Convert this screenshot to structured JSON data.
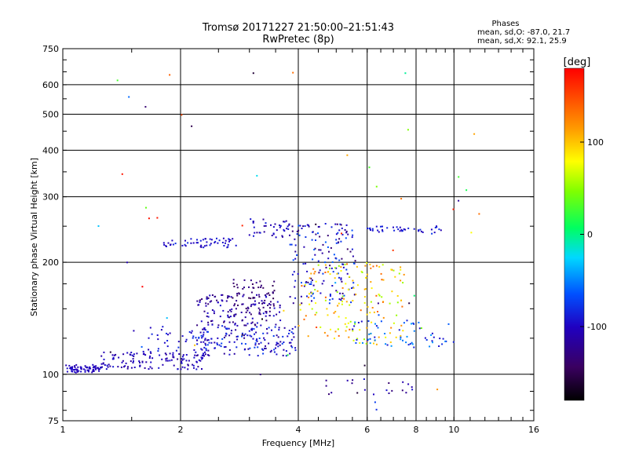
{
  "header": {
    "title_line1": "Tromsø 20171227 21:50:00–21:51:43",
    "title_line2": "RwPretec (8p)",
    "phases_title": "Phases",
    "phases_o": "mean, sd,O: -87.0, 21.7",
    "phases_x": "mean, sd,X:  92.1, 25.9"
  },
  "colorbar": {
    "label": "[deg]",
    "ticks": [
      {
        "value": 100,
        "label": "100"
      },
      {
        "value": 0,
        "label": "0"
      },
      {
        "value": -100,
        "label": "-100"
      }
    ],
    "range": [
      -180,
      180
    ]
  },
  "chart_data": {
    "type": "scatter",
    "xlabel": "Frequency [MHz]",
    "ylabel": "Stationary phase Virtual Height [km]",
    "x_scale": "log",
    "y_scale": "log",
    "xlim": [
      1,
      16
    ],
    "ylim": [
      75,
      750
    ],
    "grid": true,
    "x_ticks": [
      {
        "value": 1,
        "label": "1"
      },
      {
        "value": 2,
        "label": "2"
      },
      {
        "value": 4,
        "label": "4"
      },
      {
        "value": 6,
        "label": "6"
      },
      {
        "value": 8,
        "label": "8"
      },
      {
        "value": 10,
        "label": "10"
      },
      {
        "value": 16,
        "label": "16"
      }
    ],
    "y_ticks": [
      {
        "value": 75,
        "label": "75"
      },
      {
        "value": 100,
        "label": "100"
      },
      {
        "value": 200,
        "label": "200"
      },
      {
        "value": 300,
        "label": "300"
      },
      {
        "value": 400,
        "label": "400"
      },
      {
        "value": 500,
        "label": "500"
      },
      {
        "value": 600,
        "label": "600"
      },
      {
        "value": 750,
        "label": "750"
      }
    ],
    "x_gridlines": [
      2,
      4,
      6,
      8,
      10
    ],
    "y_gridlines": [
      100,
      200,
      300,
      400,
      500,
      600
    ],
    "point_clusters": [
      {
        "f": [
          1.0,
          1.25
        ],
        "h": [
          101,
          106
        ],
        "phase": [
          -110,
          -95
        ],
        "count": 70
      },
      {
        "f": [
          1.25,
          2.3
        ],
        "h": [
          103,
          115
        ],
        "phase": [
          -120,
          -90
        ],
        "count": 130
      },
      {
        "f": [
          1.6,
          2.4
        ],
        "h": [
          115,
          135
        ],
        "phase": [
          -110,
          -80
        ],
        "count": 40
      },
      {
        "f": [
          2.2,
          4.0
        ],
        "h": [
          112,
          135
        ],
        "phase": [
          -120,
          -70
        ],
        "count": 160
      },
      {
        "f": [
          2.2,
          3.6
        ],
        "h": [
          135,
          165
        ],
        "phase": [
          -140,
          -90
        ],
        "count": 140
      },
      {
        "f": [
          2.7,
          3.5
        ],
        "h": [
          150,
          180
        ],
        "phase": [
          -150,
          -120
        ],
        "count": 50
      },
      {
        "f": [
          1.8,
          2.8
        ],
        "h": [
          219,
          232
        ],
        "phase": [
          -110,
          -80
        ],
        "count": 55
      },
      {
        "f": [
          3.0,
          3.9
        ],
        "h": [
          233,
          262
        ],
        "phase": [
          -120,
          -85
        ],
        "count": 40
      },
      {
        "f": [
          3.8,
          5.6
        ],
        "h": [
          155,
          255
        ],
        "phase": [
          -140,
          -60
        ],
        "count": 160
      },
      {
        "f": [
          4.0,
          7.5
        ],
        "h": [
          120,
          200
        ],
        "phase": [
          50,
          140
        ],
        "count": 160
      },
      {
        "f": [
          5.5,
          10.0
        ],
        "h": [
          118,
          140
        ],
        "phase": [
          -100,
          -40
        ],
        "count": 60
      },
      {
        "f": [
          6.0,
          9.5
        ],
        "h": [
          240,
          250
        ],
        "phase": [
          -110,
          -80
        ],
        "count": 40
      },
      {
        "f": [
          4.5,
          8.0
        ],
        "h": [
          88,
          98
        ],
        "phase": [
          -140,
          -90
        ],
        "count": 20
      },
      {
        "f": [
          1.1,
          12.0
        ],
        "h": [
          80,
          650
        ],
        "phase": [
          -180,
          180
        ],
        "count": 60
      }
    ]
  }
}
